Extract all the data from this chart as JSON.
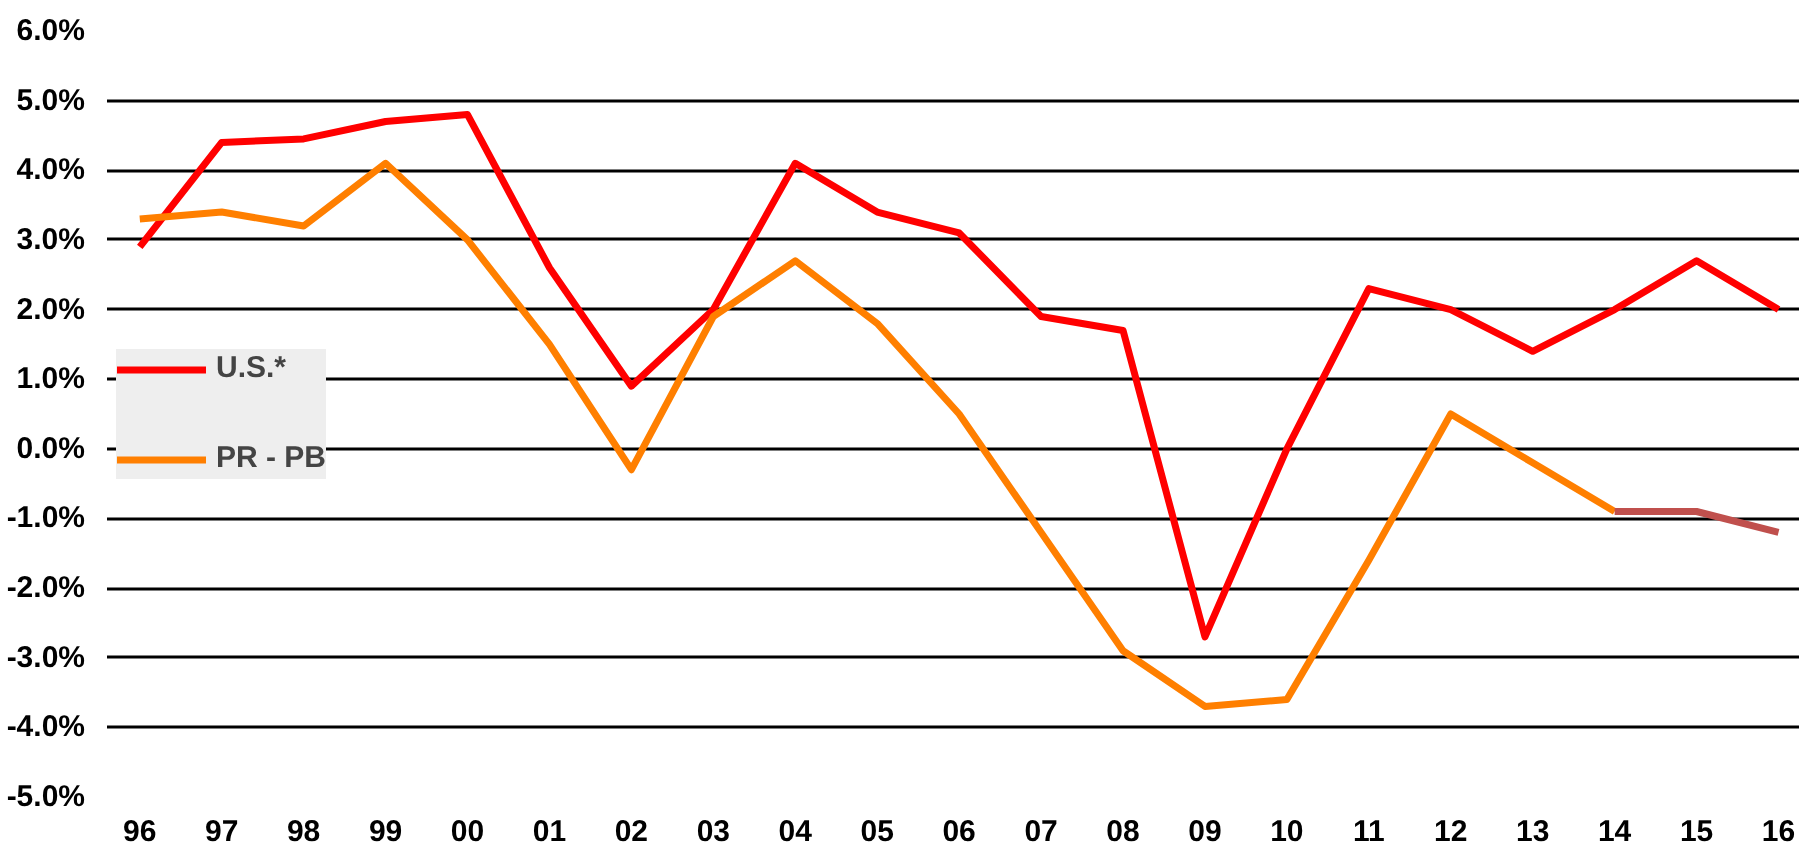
{
  "chart_data": {
    "type": "line",
    "categories": [
      "96",
      "97",
      "98",
      "99",
      "00",
      "01",
      "02",
      "03",
      "04",
      "05",
      "06",
      "07",
      "08",
      "09",
      "10",
      "11",
      "12",
      "13",
      "14",
      "15",
      "16"
    ],
    "series": [
      {
        "name": "U.S.*",
        "color": "#ff0000",
        "values": [
          2.9,
          4.4,
          4.45,
          4.7,
          4.8,
          2.6,
          0.9,
          2.0,
          4.1,
          3.4,
          3.1,
          1.9,
          1.7,
          -2.7,
          0.0,
          2.3,
          2.0,
          1.4,
          2.0,
          2.7,
          2.0
        ]
      },
      {
        "name": "PR - PB",
        "color": "#ff7f00",
        "values": [
          3.3,
          3.4,
          3.2,
          4.1,
          3.0,
          1.5,
          -0.3,
          1.9,
          2.7,
          1.8,
          0.5,
          -1.2,
          -2.9,
          -3.7,
          -3.6,
          -1.6,
          0.5,
          -0.2,
          -0.9,
          null,
          null
        ]
      },
      {
        "color": "#c0504d",
        "values": [
          null,
          null,
          null,
          null,
          null,
          null,
          null,
          null,
          null,
          null,
          null,
          null,
          null,
          null,
          null,
          null,
          null,
          null,
          -0.9,
          -0.9,
          -1.2
        ]
      }
    ],
    "ylim": [
      -5.0,
      6.0
    ],
    "yticks": [
      {
        "value": -5,
        "label": "-5.0%"
      },
      {
        "value": -4,
        "label": "-4.0%"
      },
      {
        "value": -3,
        "label": "-3.0%"
      },
      {
        "value": -2,
        "label": "-2.0%"
      },
      {
        "value": -1,
        "label": "-1.0%"
      },
      {
        "value": 0,
        "label": "0.0%"
      },
      {
        "value": 1,
        "label": "1.0%"
      },
      {
        "value": 2,
        "label": "2.0%"
      },
      {
        "value": 3,
        "label": "3.0%"
      },
      {
        "value": 4,
        "label": "4.0%"
      },
      {
        "value": 5,
        "label": "5.0%"
      },
      {
        "value": 6,
        "label": "6.0%"
      }
    ],
    "grid": "y",
    "legend": "left"
  }
}
